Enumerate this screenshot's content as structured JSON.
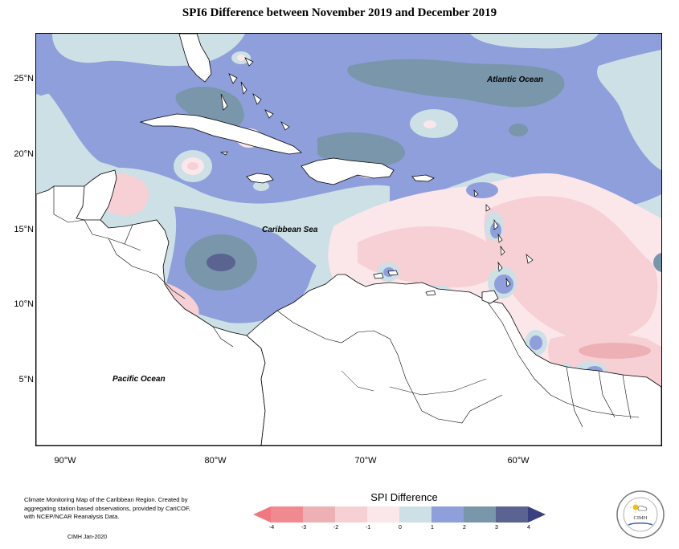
{
  "title": "SPI6 Difference between November 2019 and December 2019",
  "map": {
    "lat_labels": [
      "25°N",
      "20°N",
      "15°N",
      "10°N",
      "5°N"
    ],
    "lon_labels": [
      "90°W",
      "80°W",
      "70°W",
      "60°W"
    ],
    "ocean_labels": {
      "atlantic": "Atlantic Ocean",
      "caribbean": "Caribbean Sea",
      "pacific": "Pacific Ocean"
    },
    "colors": {
      "-4": "#f08a90",
      "-3": "#edb0b4",
      "-2": "#f6d0d4",
      "-1": "#fbe7ea",
      "0": "#cde0e5",
      "1": "#8e9fdb",
      "2": "#7a96aa",
      "3": "#5b6391",
      "land_bg": "#ffffff"
    }
  },
  "legend": {
    "title": "SPI Difference",
    "ticks": [
      "-4",
      "-3",
      "-2",
      "-1",
      "0",
      "1",
      "2",
      "3",
      "4"
    ],
    "colors": [
      "#f08a90",
      "#edb0b4",
      "#f6d0d4",
      "#fbe7ea",
      "#cde0e5",
      "#8e9fdb",
      "#7a96aa",
      "#5b6391"
    ],
    "left_arrow_color": "#f07880",
    "right_arrow_color": "#3a3f7e"
  },
  "footer": {
    "note": "Climate Monitoring Map of the Caribbean Region. Created by aggregating station based observations, provided by CariCOF, with NCEP/NCAR Reanalysis Data.",
    "credit": "CIMH Jan-2020"
  },
  "logo": {
    "text": "CIMH"
  }
}
